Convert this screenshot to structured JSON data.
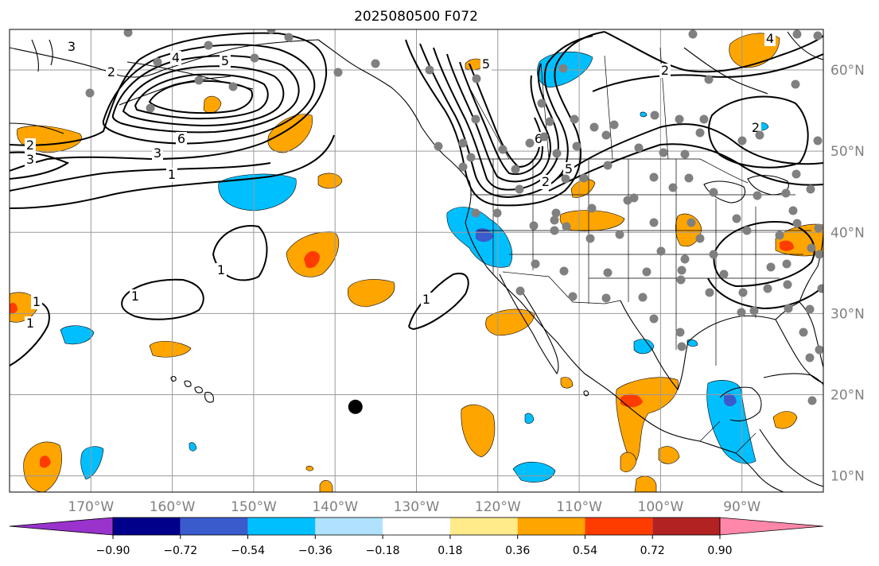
{
  "title": "2025080500 F072",
  "map": {
    "lon_range": [
      -180,
      -80
    ],
    "lat_range": [
      8,
      65
    ],
    "longitude_ticks": [
      {
        "lon": -170,
        "label": "170°W"
      },
      {
        "lon": -160,
        "label": "160°W"
      },
      {
        "lon": -150,
        "label": "150°W"
      },
      {
        "lon": -140,
        "label": "140°W"
      },
      {
        "lon": -130,
        "label": "130°W"
      },
      {
        "lon": -120,
        "label": "120°W"
      },
      {
        "lon": -110,
        "label": "110°W"
      },
      {
        "lon": -100,
        "label": "100°W"
      },
      {
        "lon": -90,
        "label": "90°W"
      }
    ],
    "latitude_ticks": [
      {
        "lat": 60,
        "label": "60°N"
      },
      {
        "lat": 50,
        "label": "50°N"
      },
      {
        "lat": 40,
        "label": "40°N"
      },
      {
        "lat": 30,
        "label": "30°N"
      },
      {
        "lat": 20,
        "label": "20°N"
      },
      {
        "lat": 10,
        "label": "10°N"
      }
    ],
    "grid": true,
    "colors": {
      "grid": "#9a9a9a",
      "tick_label": "#808080",
      "coast": "#000000",
      "contour": "#000000",
      "station": "#808080",
      "marker": "#000000"
    }
  },
  "colorbar": {
    "levels": [
      -0.9,
      -0.72,
      -0.54,
      -0.36,
      -0.18,
      0.18,
      0.36,
      0.54,
      0.72,
      0.9
    ],
    "tick_labels": [
      "−0.90",
      "−0.72",
      "−0.54",
      "−0.36",
      "−0.18",
      "0.18",
      "0.36",
      "0.54",
      "0.72",
      "0.90"
    ],
    "colors": [
      "#9933cc",
      "#00008b",
      "#3a5bcc",
      "#00bfff",
      "#b0e2ff",
      "#ffffff",
      "#ffeb8a",
      "#ffa500",
      "#ff3c00",
      "#b22222",
      "#ff88aa"
    ],
    "extend": "both"
  },
  "contour_labels": [
    "1",
    "2",
    "3",
    "4",
    "5",
    "6"
  ],
  "marker": {
    "lon": -137.5,
    "lat": 18.5
  }
}
